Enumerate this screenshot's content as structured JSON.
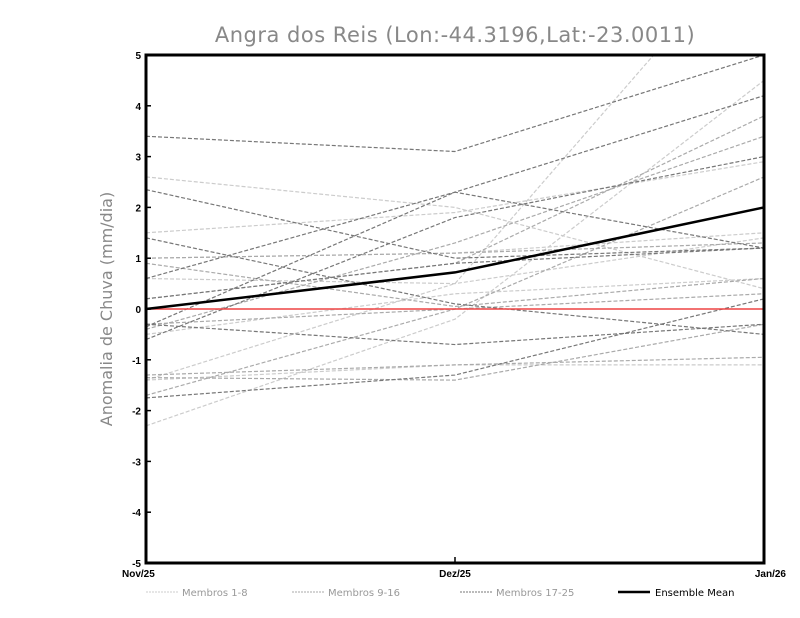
{
  "chart_data": {
    "type": "line",
    "title": "Angra dos Reis (Lon:-44.3196,Lat:-23.0011)",
    "xlabel": "",
    "ylabel": "Anomalia de Chuva (mm/dia)",
    "categories": [
      "Nov/25",
      "Dez/25",
      "Jan/26"
    ],
    "ylim": [
      -5,
      5
    ],
    "yticks": [
      "-5",
      "-4",
      "-3",
      "-2",
      "-1",
      "0",
      "1",
      "2",
      "3",
      "4",
      "5"
    ],
    "reference_line": {
      "value": 0,
      "color": "#ee4444"
    },
    "groups": [
      {
        "name": "Membros 1-8",
        "color": "#cccccc",
        "members": [
          [
            2.6,
            2.0,
            0.4
          ],
          [
            1.5,
            1.9,
            2.9
          ],
          [
            1.0,
            1.1,
            1.5
          ],
          [
            -1.4,
            0.5,
            7.5
          ],
          [
            -2.3,
            -0.2,
            4.5
          ],
          [
            0.6,
            0.5,
            1.4
          ],
          [
            -1.4,
            -1.1,
            -1.1
          ],
          [
            -0.5,
            0.3,
            0.6
          ]
        ]
      },
      {
        "name": "Membros 9-16",
        "color": "#aaaaaa",
        "members": [
          [
            1.0,
            1.1,
            1.3
          ],
          [
            -0.4,
            1.3,
            3.4
          ],
          [
            -1.3,
            -1.1,
            -0.95
          ],
          [
            0.9,
            0.05,
            0.6
          ],
          [
            -1.7,
            0.0,
            2.6
          ],
          [
            -0.3,
            0.0,
            0.3
          ],
          [
            -1.35,
            -1.4,
            -0.3
          ],
          [
            0.2,
            0.9,
            3.8
          ]
        ]
      },
      {
        "name": "Membros 17-25",
        "color": "#777777",
        "members": [
          [
            3.4,
            3.1,
            5.0
          ],
          [
            2.35,
            1.0,
            1.2
          ],
          [
            0.6,
            2.3,
            4.2
          ],
          [
            -0.6,
            1.8,
            3.0
          ],
          [
            -0.3,
            -0.7,
            -0.3
          ],
          [
            -1.75,
            -1.3,
            0.2
          ],
          [
            1.4,
            0.1,
            -0.5
          ],
          [
            -0.35,
            2.3,
            1.2
          ],
          [
            0.2,
            0.9,
            1.2
          ]
        ]
      }
    ],
    "ensemble_mean": {
      "name": "Ensemble Mean",
      "color": "#000000",
      "values": [
        0.0,
        0.72,
        2.0
      ]
    },
    "legend": {
      "placement": "bottom"
    }
  }
}
